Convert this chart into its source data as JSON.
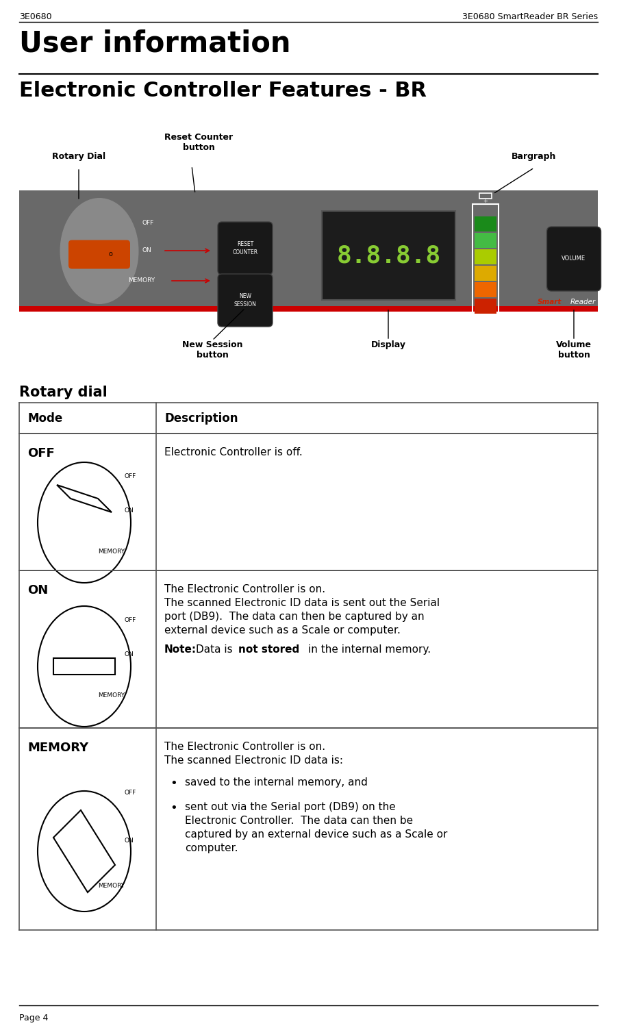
{
  "header_left": "3E0680",
  "header_right": "3E0680 SmartReader BR Series",
  "title": "User information",
  "subtitle": "Electronic Controller Features - BR",
  "rotary_dial_label": "Rotary Dial",
  "reset_counter_label": "Reset Counter\nbutton",
  "bargraph_label": "Bargraph",
  "new_session_label": "New Session\nbutton",
  "display_label": "Display",
  "volume_label": "Volume\nbutton",
  "rotary_dial_section": "Rotary dial",
  "table_headers": [
    "Mode",
    "Description"
  ],
  "footer": "Page 4",
  "bg_color": "#ffffff",
  "controller_bg": "#696969",
  "controller_red_stripe": "#cc0000",
  "dial_orange": "#cc4400",
  "display_green": "#88cc33",
  "bargraph_colors": [
    "#1a8a1a",
    "#44bb44",
    "#aacc00",
    "#ddaa00",
    "#ee6600",
    "#cc2200"
  ],
  "smart_red": "#cc2200",
  "note_prefix": "Note:",
  "note_mid": " Data is ",
  "note_bold": "not stored",
  "note_end": " in the internal memory."
}
